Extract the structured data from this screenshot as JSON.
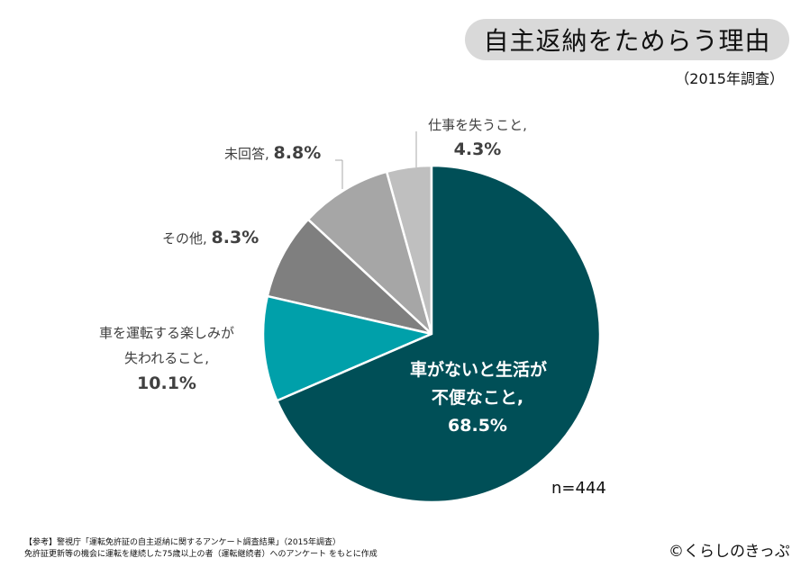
{
  "header": {
    "title": "自主返納をためらう理由",
    "subtitle": "（2015年調査）"
  },
  "chart_data": {
    "type": "pie",
    "title": "自主返納をためらう理由",
    "start": "top",
    "direction": "clockwise",
    "slices": [
      {
        "label": "車がないと生活が不便なこと,",
        "value": 68.5,
        "value_label": "68.5%",
        "color": "#004f57"
      },
      {
        "label": "車を運転する楽しみが失われること,",
        "value": 10.1,
        "value_label": "10.1%",
        "color": "#00a0aa"
      },
      {
        "label": "その他,",
        "value": 8.3,
        "value_label": "8.3%",
        "color": "#7f7f7f"
      },
      {
        "label": "未回答,",
        "value": 8.8,
        "value_label": "8.8%",
        "color": "#a6a6a6"
      },
      {
        "label": "仕事を失うこと,",
        "value": 4.3,
        "value_label": "4.3%",
        "color": "#bfbfbf"
      }
    ],
    "sample_size": "n=444"
  },
  "labels": {
    "s0_line1": "車がないと生活が",
    "s0_line2": "不便なこと,",
    "s0_val": "68.5%",
    "s1_line1": "車を運転する楽しみが",
    "s1_line2": "失われること,",
    "s1_val": "10.1%",
    "s2_text": "その他, ",
    "s2_val": "8.3%",
    "s3_text": "未回答, ",
    "s3_val": "8.8%",
    "s4_line1": "仕事を失うこと,",
    "s4_val": "4.3%"
  },
  "footer": {
    "source_line1": "【参考】警視庁「運転免許証の自主返納に関するアンケート調査結果」（2015年調査）",
    "source_line2": "免許証更新等の機会に運転を継続した75歳以上の者（運転継続者）へのアンケート をもとに作成",
    "copyright": "©くらしのきっぷ"
  }
}
